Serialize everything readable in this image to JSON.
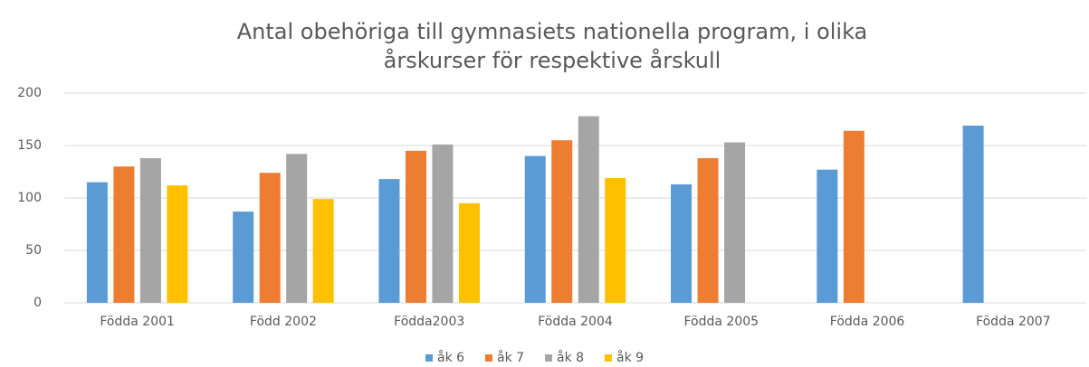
{
  "chart_data": {
    "type": "bar",
    "title": [
      "Antal obehöriga till gymnasiets nationella program, i olika",
      "årskurser för respektive årskull"
    ],
    "categories": [
      "Födda 2001",
      "Född 2002",
      "Född­a2003",
      "Födda 2004",
      "Födda 2005",
      "Födda 2006",
      "Födda 2007"
    ],
    "series": [
      {
        "name": "åk 6",
        "color": "#5b9bd5",
        "values": [
          115,
          87,
          118,
          140,
          113,
          127,
          169
        ]
      },
      {
        "name": "åk 7",
        "color": "#ed7d31",
        "values": [
          130,
          124,
          145,
          155,
          138,
          164,
          null
        ]
      },
      {
        "name": "åk 8",
        "color": "#a5a5a5",
        "values": [
          138,
          142,
          151,
          178,
          153,
          null,
          null
        ]
      },
      {
        "name": "åk 9",
        "color": "#ffc000",
        "values": [
          112,
          99,
          95,
          119,
          null,
          null,
          null
        ]
      }
    ],
    "ylim": [
      0,
      200
    ],
    "yticks": [
      0,
      50,
      100,
      150,
      200
    ],
    "grid": true,
    "legend": "bottom"
  }
}
